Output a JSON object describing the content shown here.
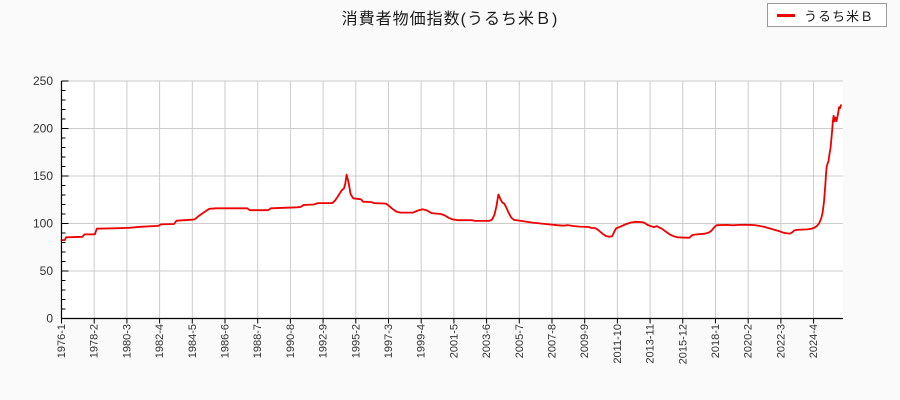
{
  "page": {
    "background": "#fafafa",
    "plot_background": "#ffffff"
  },
  "header": {
    "title": "消費者物価指数(うるち米Ｂ)"
  },
  "legend": {
    "label": "うるち米Ｂ",
    "line_color": "#ee0000",
    "position": "top-right"
  },
  "chart_data": {
    "type": "line",
    "title": "消費者物価指数(うるち米Ｂ)",
    "series_name": "うるち米Ｂ",
    "line_color": "#ee0000",
    "grid": true,
    "grid_color": "#cccccc",
    "axis_color": "#000000",
    "tick_label_color": "#333333",
    "ylabel": "",
    "xlabel": "",
    "ylim": [
      0,
      250
    ],
    "y_ticks": [
      0,
      50,
      100,
      150,
      200,
      250
    ],
    "y_minor_step": 10,
    "x_tick_labels": [
      "1976-1",
      "1978-2",
      "1980-3",
      "1982-4",
      "1984-5",
      "1986-6",
      "1988-7",
      "1990-8",
      "1992-9",
      "1995-2",
      "1997-3",
      "1999-4",
      "2001-5",
      "2003-6",
      "2005-7",
      "2007-8",
      "2009-9",
      "2011-10",
      "2013-11",
      "2015-12",
      "2018-1",
      "2020-2",
      "2022-3",
      "2024-4"
    ],
    "x_tick_step": 25,
    "x_index_max": 597.5,
    "points_are_anchors": true,
    "points": [
      [
        0,
        82.5
      ],
      [
        2.5,
        82.5
      ],
      [
        3.5,
        85.5
      ],
      [
        16,
        86
      ],
      [
        17.5,
        88.5
      ],
      [
        25.5,
        88.5
      ],
      [
        27,
        94.5
      ],
      [
        40,
        95
      ],
      [
        52,
        95.5
      ],
      [
        60,
        96.5
      ],
      [
        74,
        97.5
      ],
      [
        76,
        99
      ],
      [
        86,
        99.5
      ],
      [
        88,
        103
      ],
      [
        100,
        104
      ],
      [
        102,
        104.5
      ],
      [
        105,
        108
      ],
      [
        108,
        111
      ],
      [
        113,
        115.5
      ],
      [
        118,
        116
      ],
      [
        142,
        116
      ],
      [
        144,
        114
      ],
      [
        158,
        114
      ],
      [
        160,
        116
      ],
      [
        180,
        117
      ],
      [
        183,
        117.5
      ],
      [
        185,
        119.5
      ],
      [
        193,
        120
      ],
      [
        196,
        121.5
      ],
      [
        207,
        121.5
      ],
      [
        209,
        124
      ],
      [
        212,
        130
      ],
      [
        214,
        134.5
      ],
      [
        216,
        137
      ],
      [
        217,
        142
      ],
      [
        218,
        151.5
      ],
      [
        219.5,
        143
      ],
      [
        221,
        131
      ],
      [
        223,
        126.5
      ],
      [
        229,
        125.5
      ],
      [
        230.5,
        123
      ],
      [
        237,
        122.5
      ],
      [
        239,
        121.5
      ],
      [
        248,
        121
      ],
      [
        250,
        119
      ],
      [
        252.5,
        116
      ],
      [
        256,
        112.5
      ],
      [
        259,
        111.5
      ],
      [
        269,
        111.5
      ],
      [
        272,
        113.5
      ],
      [
        276,
        115
      ],
      [
        279,
        114
      ],
      [
        283,
        111
      ],
      [
        290,
        110
      ],
      [
        293,
        108.5
      ],
      [
        296,
        106
      ],
      [
        299,
        104.3
      ],
      [
        303,
        103.5
      ],
      [
        314,
        103.5
      ],
      [
        316,
        102.7
      ],
      [
        327,
        102.7
      ],
      [
        329,
        103.8
      ],
      [
        331,
        109
      ],
      [
        332.5,
        118
      ],
      [
        334,
        130.5
      ],
      [
        335.5,
        126
      ],
      [
        337,
        122
      ],
      [
        338.5,
        121
      ],
      [
        340,
        117
      ],
      [
        342,
        111
      ],
      [
        344,
        106
      ],
      [
        346,
        103.8
      ],
      [
        352,
        102.6
      ],
      [
        360,
        101
      ],
      [
        370,
        99.5
      ],
      [
        379,
        98.2
      ],
      [
        384,
        97.7
      ],
      [
        387,
        98.3
      ],
      [
        391,
        97.4
      ],
      [
        396,
        96.7
      ],
      [
        403,
        96.3
      ],
      [
        405,
        95.4
      ],
      [
        408,
        95.2
      ],
      [
        410,
        93.5
      ],
      [
        413,
        90
      ],
      [
        416,
        87
      ],
      [
        419,
        86
      ],
      [
        421,
        86.5
      ],
      [
        422.5,
        91
      ],
      [
        424,
        95
      ],
      [
        427,
        96.5
      ],
      [
        431,
        99
      ],
      [
        435,
        101
      ],
      [
        439,
        101.8
      ],
      [
        444,
        101.5
      ],
      [
        446,
        100.5
      ],
      [
        448,
        98.5
      ],
      [
        451,
        97
      ],
      [
        453,
        96.2
      ],
      [
        455,
        97.3
      ],
      [
        457,
        95.8
      ],
      [
        459,
        94.5
      ],
      [
        462,
        91.5
      ],
      [
        465,
        88.5
      ],
      [
        468,
        86.6
      ],
      [
        471,
        85.5
      ],
      [
        480,
        85
      ],
      [
        482,
        87.5
      ],
      [
        484,
        88.3
      ],
      [
        492,
        89.3
      ],
      [
        495,
        90.5
      ],
      [
        497,
        92.5
      ],
      [
        499,
        96
      ],
      [
        501,
        98.2
      ],
      [
        509,
        98.5
      ],
      [
        513,
        98.1
      ],
      [
        518,
        98.5
      ],
      [
        525,
        98.6
      ],
      [
        530,
        98.3
      ],
      [
        533,
        97.6
      ],
      [
        537,
        96.5
      ],
      [
        541,
        95
      ],
      [
        545,
        93.4
      ],
      [
        549,
        91.8
      ],
      [
        552,
        90.3
      ],
      [
        555,
        89.6
      ],
      [
        557,
        89.4
      ],
      [
        558.5,
        90.5
      ],
      [
        560,
        92.5
      ],
      [
        562,
        93.3
      ],
      [
        570,
        93.8
      ],
      [
        573,
        94.3
      ],
      [
        576,
        95.8
      ],
      [
        578,
        98
      ],
      [
        579.5,
        101
      ],
      [
        581,
        106
      ],
      [
        582,
        112
      ],
      [
        583,
        123
      ],
      [
        584,
        140
      ],
      [
        584.5,
        152
      ],
      [
        585,
        160
      ],
      [
        586,
        164.5
      ],
      [
        586.5,
        166
      ],
      [
        587,
        172
      ],
      [
        588,
        180
      ],
      [
        589,
        195
      ],
      [
        589.8,
        208
      ],
      [
        590.3,
        213.5
      ],
      [
        591,
        207.5
      ],
      [
        591.8,
        211.5
      ],
      [
        592.5,
        207.8
      ],
      [
        593.5,
        214
      ],
      [
        594.5,
        222.5
      ],
      [
        595.2,
        221.5
      ],
      [
        596,
        224.5
      ]
    ],
    "legend_position": "top-right"
  }
}
